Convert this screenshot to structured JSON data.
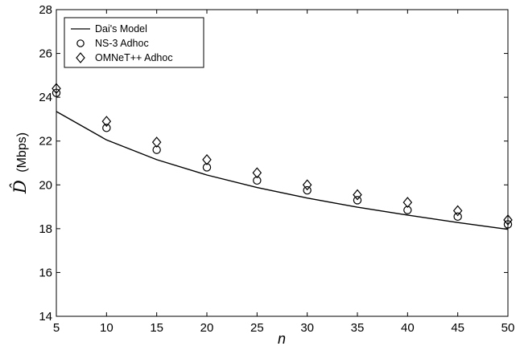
{
  "chart_data": {
    "type": "line",
    "x": [
      5,
      10,
      15,
      20,
      25,
      30,
      35,
      40,
      45,
      50
    ],
    "series": [
      {
        "name": "Dai's Model",
        "style": "line",
        "values": [
          23.35,
          22.05,
          21.15,
          20.45,
          19.88,
          19.4,
          18.98,
          18.62,
          18.28,
          17.97
        ]
      },
      {
        "name": "NS-3 Adhoc",
        "style": "circle",
        "values": [
          24.2,
          22.6,
          21.6,
          20.8,
          20.2,
          19.75,
          19.3,
          18.85,
          18.55,
          18.2
        ]
      },
      {
        "name": "OMNeT++ Adhoc",
        "style": "diamond",
        "values": [
          24.4,
          22.9,
          21.95,
          21.15,
          20.55,
          20.0,
          19.55,
          19.2,
          18.82,
          18.4
        ]
      }
    ],
    "xlabel": "n",
    "ylabel_symbol": "D̂",
    "ylabel_unit": "(Mbps)",
    "xlim": [
      5,
      50
    ],
    "ylim": [
      14,
      28
    ],
    "xticks": [
      5,
      10,
      15,
      20,
      25,
      30,
      35,
      40,
      45,
      50
    ],
    "yticks": [
      14,
      16,
      18,
      20,
      22,
      24,
      26,
      28
    ],
    "grid": false,
    "legend_position": "top-left",
    "line_color": "#000000",
    "marker_color": "#000000",
    "background_color": "#ffffff"
  }
}
